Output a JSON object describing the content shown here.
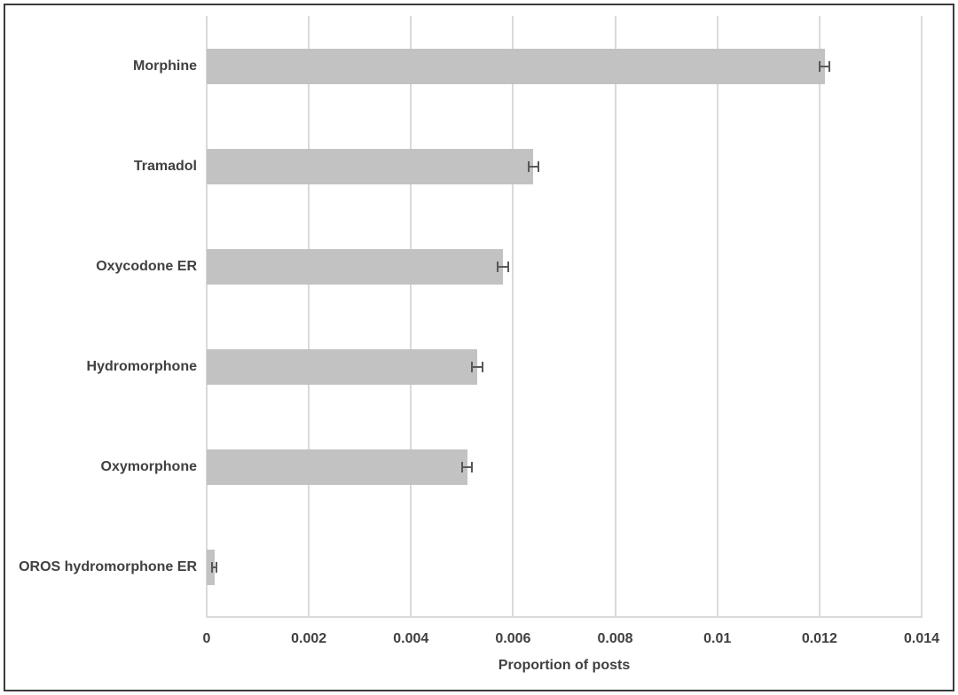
{
  "chart_data": {
    "type": "bar",
    "orientation": "horizontal",
    "title": "",
    "xlabel": "Proportion of posts",
    "ylabel": "",
    "categories": [
      "Morphine",
      "Tramadol",
      "Oxycodone ER",
      "Hydromorphone",
      "Oxymorphone",
      "OROS hydromorphone ER"
    ],
    "values": [
      0.0121,
      0.0064,
      0.0058,
      0.0053,
      0.0051,
      0.00015
    ],
    "errors": [
      0.0001,
      0.0001,
      0.0001,
      0.0001,
      0.0001,
      4e-05
    ],
    "xlim": [
      0,
      0.014
    ],
    "xticks": [
      0,
      0.002,
      0.004,
      0.006,
      0.008,
      0.01,
      0.012,
      0.014
    ],
    "xtick_labels": [
      "0",
      "0.002",
      "0.004",
      "0.006",
      "0.008",
      "0.01",
      "0.012",
      "0.014"
    ],
    "grid": "vertical",
    "legend": "none",
    "colors": {
      "bar_fill": "#c2c2c2",
      "error_bar": "#595959",
      "gridline": "#dadada",
      "axis_line": "#dadada",
      "text": "#404040",
      "border": "#3b3b3b",
      "background": "#ffffff"
    }
  }
}
